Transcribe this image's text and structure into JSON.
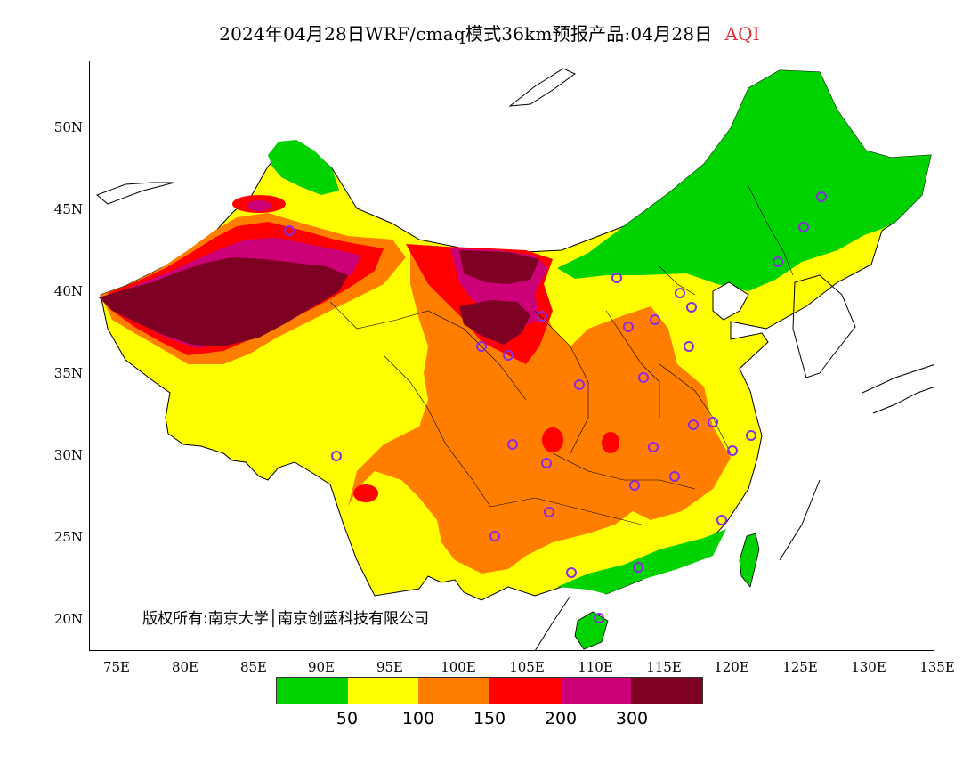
{
  "title": {
    "main": "2024年04月28日WRF/cmaq模式36km预报产品:04月28日",
    "variable": "AQI",
    "variable_color": "#e0303a"
  },
  "axes": {
    "lat_labels": [
      "50N",
      "45N",
      "40N",
      "35N",
      "30N",
      "25N",
      "20N"
    ],
    "lon_labels": [
      "75E",
      "80E",
      "85E",
      "90E",
      "95E",
      "100E",
      "105E",
      "110E",
      "115E",
      "120E",
      "125E",
      "130E",
      "135E"
    ]
  },
  "copyright": "版权所有:南京大学│南京创蓝科技有限公司",
  "legend": {
    "colors": [
      "#00d200",
      "#ffff00",
      "#ff7e00",
      "#ff0000",
      "#cc0077",
      "#7e0023"
    ],
    "thresholds": [
      "50",
      "100",
      "150",
      "200",
      "300"
    ]
  }
}
